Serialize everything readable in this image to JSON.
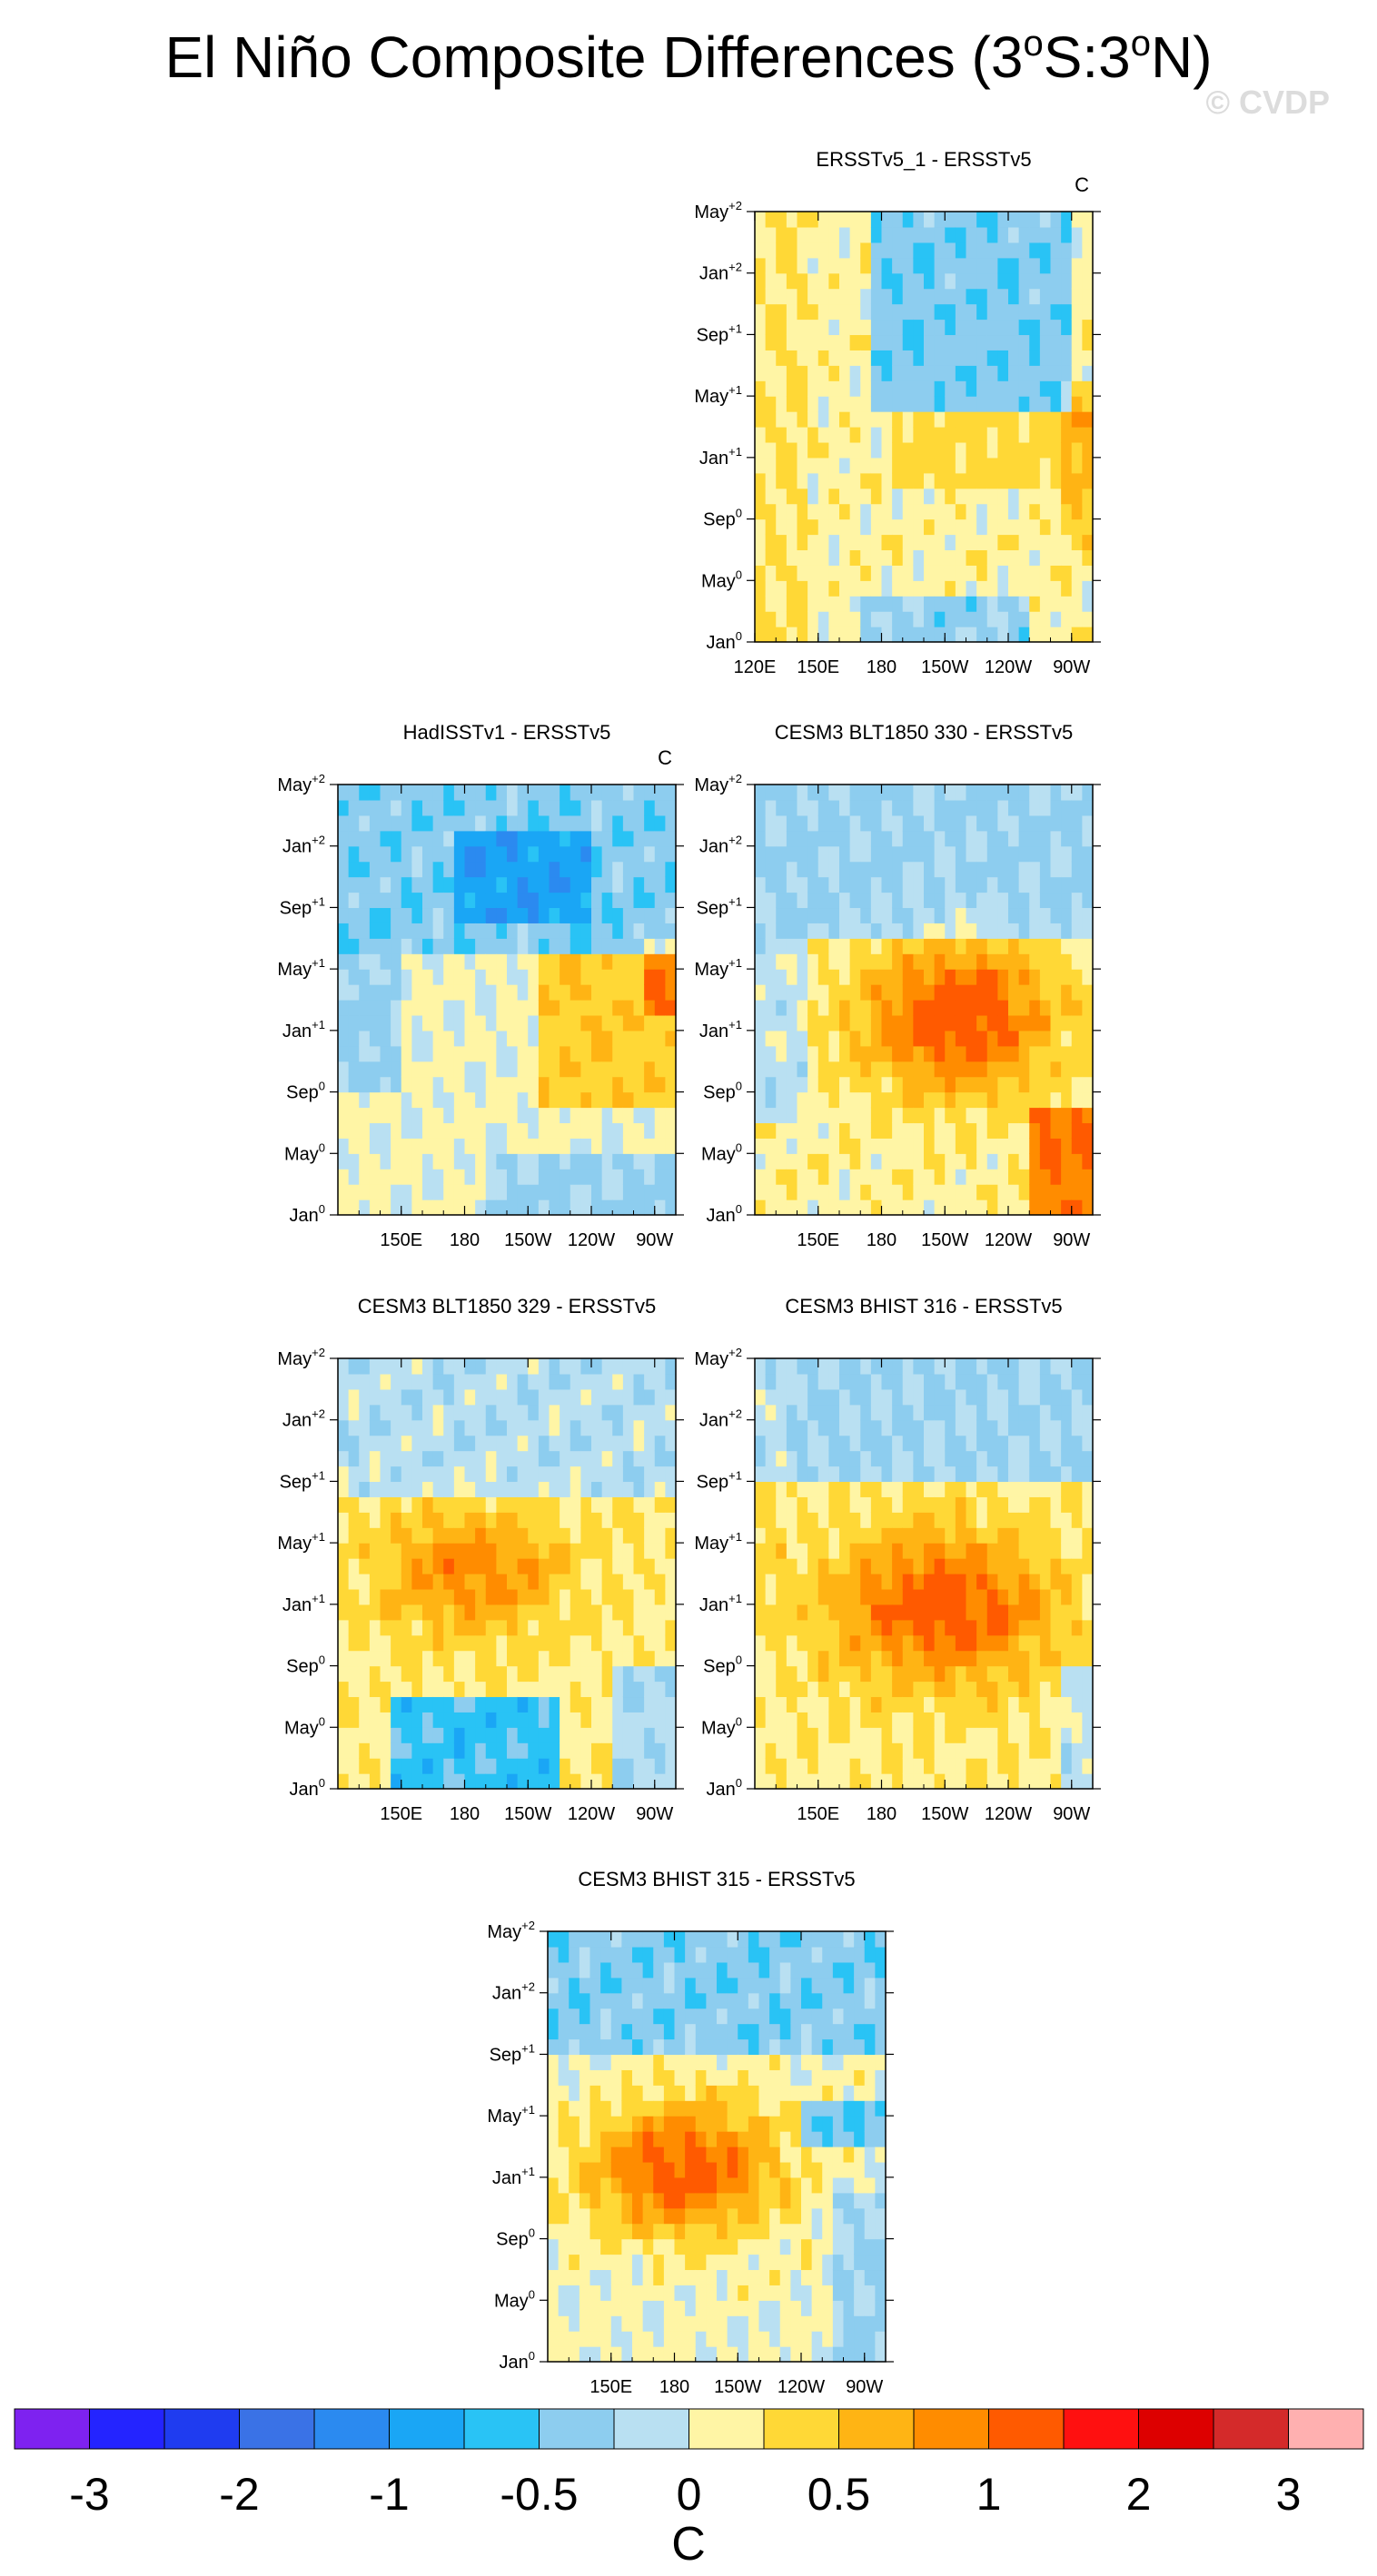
{
  "title": {
    "prefix": "El Niño Composite Differences (3",
    "deg1": "o",
    "mid": "S:3",
    "deg2": "o",
    "suffix": "N)"
  },
  "watermark": "© CVDP",
  "unit": "C",
  "colorbar": {
    "labels": [
      "-3",
      "-2",
      "-1",
      "-0.5",
      "0",
      "0.5",
      "1",
      "2",
      "3"
    ],
    "label_positions_bin_index": [
      1,
      3,
      5,
      7,
      9,
      11,
      13,
      15,
      17
    ],
    "bounds": [
      -3.5,
      -3,
      -2.5,
      -2,
      -1.5,
      -1,
      -0.75,
      -0.5,
      -0.25,
      0,
      0.25,
      0.5,
      0.75,
      1,
      1.5,
      2,
      2.5,
      3
    ],
    "colors": [
      "#7e22f0",
      "#2424ff",
      "#1f3cf0",
      "#3a72e6",
      "#2b8af0",
      "#1aa6f5",
      "#29c3f5",
      "#8dcdef",
      "#b9e0f2",
      "#fff5a5",
      "#ffd836",
      "#ffb414",
      "#ff8c00",
      "#ff5a00",
      "#ff1010",
      "#dd0000",
      "#d42a2a",
      "#ffb0b0"
    ]
  },
  "chart_data": [
    {
      "type": "heatmap",
      "title": "ERSSTv5_1 - ERSSTv5",
      "units_label": "C",
      "x": {
        "tick_labels": [
          "120E",
          "150E",
          "180",
          "150W",
          "120W",
          "90W"
        ],
        "tick_values_deg_east": [
          120,
          150,
          180,
          210,
          240,
          270
        ],
        "range": [
          120,
          280
        ]
      },
      "y": {
        "tick_labels": [
          "Jan0",
          "May0",
          "Sep0",
          "Jan+1",
          "May+1",
          "Sep+1",
          "Jan+2",
          "May+2"
        ],
        "tick_values_month": [
          0,
          4,
          8,
          12,
          16,
          20,
          24,
          28
        ],
        "range": [
          0,
          28
        ]
      },
      "description_values": {
        "time_months": [
          0,
          4,
          8,
          12,
          16,
          20,
          24,
          28
        ],
        "mean_anomaly_by_time": [
          0.1,
          0.1,
          0.1,
          0.0,
          -0.3,
          -0.4,
          -0.3,
          -0.3
        ]
      }
    },
    {
      "type": "heatmap",
      "title": "HadISSTv1 - ERSSTv5",
      "units_label": "C",
      "x": {
        "tick_labels": [
          "150E",
          "180",
          "150W",
          "120W",
          "90W"
        ],
        "tick_values_deg_east": [
          150,
          180,
          210,
          240,
          270
        ],
        "range": [
          120,
          280
        ]
      },
      "y": {
        "tick_labels": [
          "Jan0",
          "May0",
          "Sep0",
          "Jan+1",
          "May+1",
          "Sep+1",
          "Jan+2",
          "May+2"
        ],
        "tick_values_month": [
          0,
          4,
          8,
          12,
          16,
          20,
          24,
          28
        ],
        "range": [
          0,
          28
        ]
      },
      "description_values": {
        "time_months": [
          0,
          4,
          8,
          12,
          16,
          20,
          24,
          28
        ],
        "mean_anomaly_by_time": [
          0.0,
          0.1,
          0.2,
          0.2,
          0.1,
          -0.5,
          -0.4,
          -0.3
        ]
      }
    },
    {
      "type": "heatmap",
      "title": "CESM3 BLT1850 330 - ERSSTv5",
      "units_label": "",
      "x": {
        "tick_labels": [
          "150E",
          "180",
          "150W",
          "120W",
          "90W"
        ],
        "tick_values_deg_east": [
          150,
          180,
          210,
          240,
          270
        ],
        "range": [
          120,
          280
        ]
      },
      "y": {
        "tick_labels": [
          "Jan0",
          "May0",
          "Sep0",
          "Jan+1",
          "May+1",
          "Sep+1",
          "Jan+2",
          "May+2"
        ],
        "tick_values_month": [
          0,
          4,
          8,
          12,
          16,
          20,
          24,
          28
        ],
        "range": [
          0,
          28
        ]
      },
      "description_values": {
        "time_months": [
          0,
          4,
          8,
          12,
          16,
          20,
          24,
          28
        ],
        "mean_anomaly_by_time": [
          0.3,
          0.5,
          0.8,
          0.9,
          0.6,
          0.0,
          -0.2,
          -0.2
        ]
      }
    },
    {
      "type": "heatmap",
      "title": "CESM3 BLT1850 329 - ERSSTv5",
      "units_label": "",
      "x": {
        "tick_labels": [
          "150E",
          "180",
          "150W",
          "120W",
          "90W"
        ],
        "tick_values_deg_east": [
          150,
          180,
          210,
          240,
          270
        ],
        "range": [
          120,
          280
        ]
      },
      "y": {
        "tick_labels": [
          "Jan0",
          "May0",
          "Sep0",
          "Jan+1",
          "May+1",
          "Sep+1",
          "Jan+2",
          "May+2"
        ],
        "tick_values_month": [
          0,
          4,
          8,
          12,
          16,
          20,
          24,
          28
        ],
        "range": [
          0,
          28
        ]
      },
      "description_values": {
        "time_months": [
          0,
          4,
          8,
          12,
          16,
          20,
          24,
          28
        ],
        "mean_anomaly_by_time": [
          -0.4,
          0.1,
          0.5,
          0.7,
          0.5,
          0.0,
          -0.3,
          -0.3
        ]
      }
    },
    {
      "type": "heatmap",
      "title": "CESM3 BHIST 316 - ERSSTv5",
      "units_label": "",
      "x": {
        "tick_labels": [
          "150E",
          "180",
          "150W",
          "120W",
          "90W"
        ],
        "tick_values_deg_east": [
          150,
          180,
          210,
          240,
          270
        ],
        "range": [
          120,
          280
        ]
      },
      "y": {
        "tick_labels": [
          "Jan0",
          "May0",
          "Sep0",
          "Jan+1",
          "May+1",
          "Sep+1",
          "Jan+2",
          "May+2"
        ],
        "tick_values_month": [
          0,
          4,
          8,
          12,
          16,
          20,
          24,
          28
        ],
        "range": [
          0,
          28
        ]
      },
      "description_values": {
        "time_months": [
          0,
          4,
          8,
          12,
          16,
          20,
          24,
          28
        ],
        "mean_anomaly_by_time": [
          0.3,
          0.5,
          0.8,
          0.9,
          0.6,
          0.1,
          -0.3,
          -0.3
        ]
      }
    },
    {
      "type": "heatmap",
      "title": "CESM3 BHIST 315 - ERSSTv5",
      "units_label": "",
      "x": {
        "tick_labels": [
          "150E",
          "180",
          "150W",
          "120W",
          "90W"
        ],
        "tick_values_deg_east": [
          150,
          180,
          210,
          240,
          270
        ],
        "range": [
          120,
          280
        ]
      },
      "y": {
        "tick_labels": [
          "Jan0",
          "May0",
          "Sep0",
          "Jan+1",
          "May+1",
          "Sep+1",
          "Jan+2",
          "May+2"
        ],
        "tick_values_month": [
          0,
          4,
          8,
          12,
          16,
          20,
          24,
          28
        ],
        "range": [
          0,
          28
        ]
      },
      "description_values": {
        "time_months": [
          0,
          4,
          8,
          12,
          16,
          20,
          24,
          28
        ],
        "mean_anomaly_by_time": [
          0.2,
          0.4,
          0.7,
          0.9,
          0.6,
          0.0,
          -0.3,
          -0.3
        ]
      }
    }
  ]
}
